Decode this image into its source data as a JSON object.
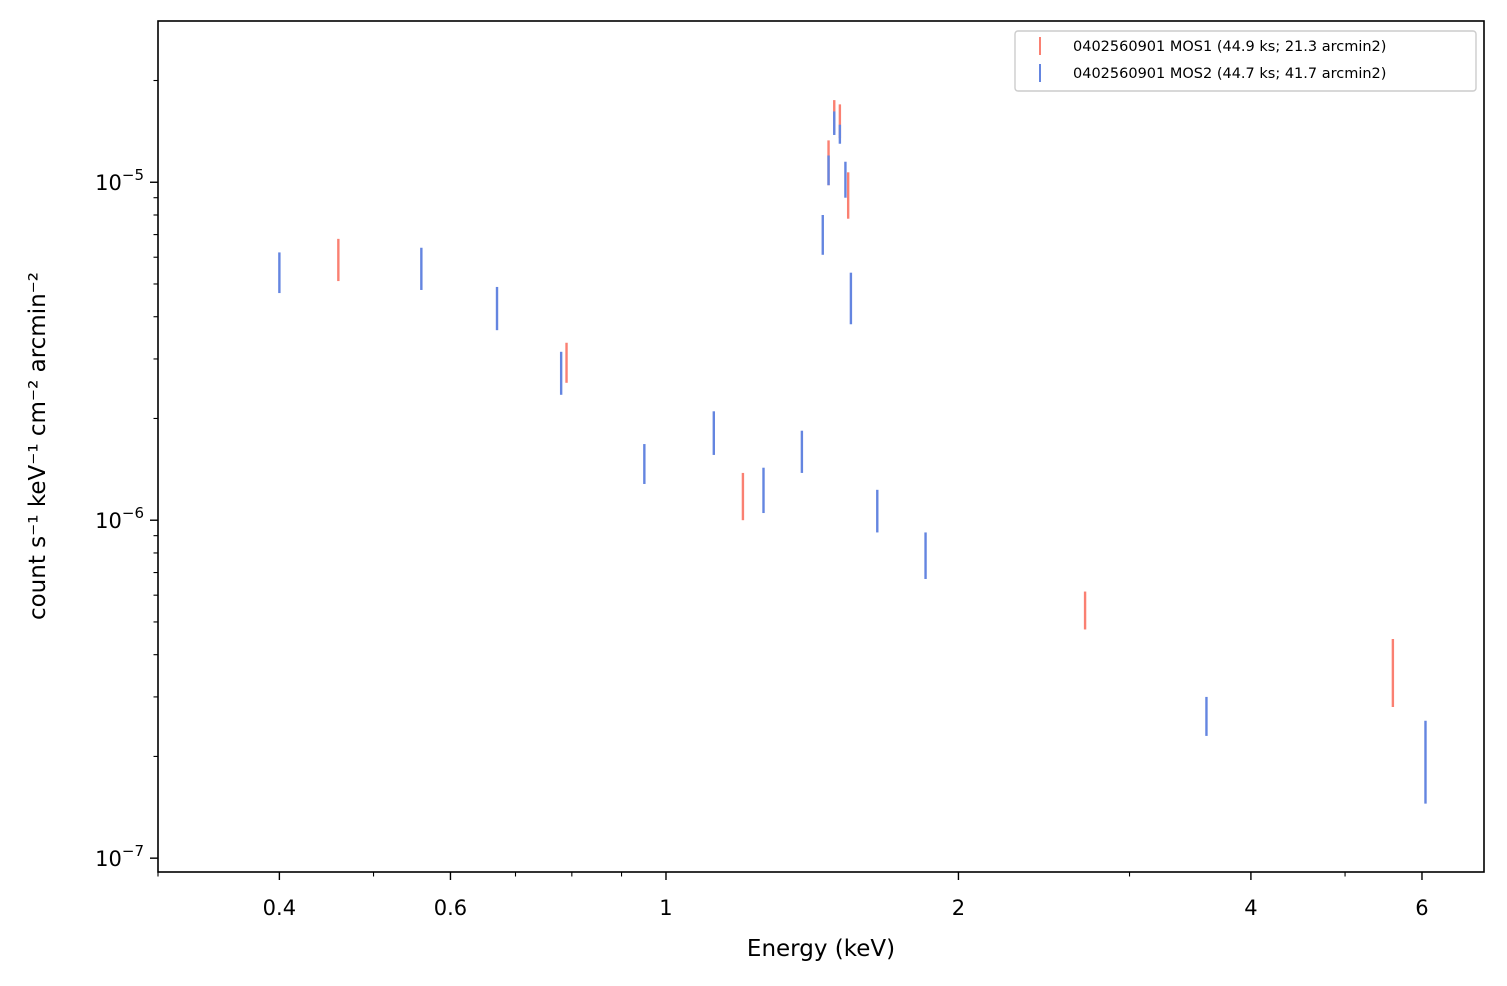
{
  "chart_data": {
    "type": "scatter",
    "title": "",
    "xlabel": "Energy (keV)",
    "ylabel": "count s⁻¹ keV⁻¹ cm⁻² arcmin⁻²",
    "xscale": "log",
    "yscale": "log",
    "xlim": [
      0.3,
      6.95
    ],
    "ylim": [
      9.1e-08,
      3e-05
    ],
    "x_ticks": [
      {
        "value": 0.4,
        "label": "0.4"
      },
      {
        "value": 0.6,
        "label": "0.6"
      },
      {
        "value": 1,
        "label": "1"
      },
      {
        "value": 2,
        "label": "2"
      },
      {
        "value": 4,
        "label": "4"
      },
      {
        "value": 6,
        "label": "6"
      }
    ],
    "y_ticks": [
      {
        "value": 1e-07,
        "base": "10",
        "exp": "−7"
      },
      {
        "value": 1e-06,
        "base": "10",
        "exp": "−6"
      },
      {
        "value": 1e-05,
        "base": "10",
        "exp": "−5"
      }
    ],
    "grid": false,
    "legend_position": "top-right",
    "series": [
      {
        "name": "0402560901 MOS1 (44.9 ks; 21.3 arcmin2)",
        "color": "#fa8072",
        "points": [
          {
            "x": 0.46,
            "ylo": 5.1e-06,
            "yhi": 6.8e-06
          },
          {
            "x": 0.79,
            "ylo": 2.55e-06,
            "yhi": 3.35e-06
          },
          {
            "x": 1.2,
            "ylo": 1e-06,
            "yhi": 1.38e-06
          },
          {
            "x": 1.47,
            "ylo": 9.8e-06,
            "yhi": 1.33e-05
          },
          {
            "x": 1.49,
            "ylo": 1.4e-05,
            "yhi": 1.75e-05
          },
          {
            "x": 1.51,
            "ylo": 1.35e-05,
            "yhi": 1.7e-05
          },
          {
            "x": 1.54,
            "ylo": 7.8e-06,
            "yhi": 1.07e-05
          },
          {
            "x": 2.7,
            "ylo": 4.75e-07,
            "yhi": 6.15e-07
          },
          {
            "x": 5.6,
            "ylo": 2.8e-07,
            "yhi": 4.45e-07
          }
        ]
      },
      {
        "name": "0402560901 MOS2 (44.7 ks; 41.7 arcmin2)",
        "color": "#6485e0",
        "points": [
          {
            "x": 0.4,
            "ylo": 4.7e-06,
            "yhi": 6.2e-06
          },
          {
            "x": 0.56,
            "ylo": 4.8e-06,
            "yhi": 6.4e-06
          },
          {
            "x": 0.67,
            "ylo": 3.65e-06,
            "yhi": 4.9e-06
          },
          {
            "x": 0.78,
            "ylo": 2.35e-06,
            "yhi": 3.15e-06
          },
          {
            "x": 0.95,
            "ylo": 1.28e-06,
            "yhi": 1.68e-06
          },
          {
            "x": 1.12,
            "ylo": 1.56e-06,
            "yhi": 2.1e-06
          },
          {
            "x": 1.26,
            "ylo": 1.05e-06,
            "yhi": 1.43e-06
          },
          {
            "x": 1.38,
            "ylo": 1.38e-06,
            "yhi": 1.84e-06
          },
          {
            "x": 1.45,
            "ylo": 6.1e-06,
            "yhi": 8e-06
          },
          {
            "x": 1.47,
            "ylo": 9.8e-06,
            "yhi": 1.2e-05
          },
          {
            "x": 1.49,
            "ylo": 1.38e-05,
            "yhi": 1.62e-05
          },
          {
            "x": 1.51,
            "ylo": 1.3e-05,
            "yhi": 1.48e-05
          },
          {
            "x": 1.53,
            "ylo": 9e-06,
            "yhi": 1.15e-05
          },
          {
            "x": 1.55,
            "ylo": 3.8e-06,
            "yhi": 5.4e-06
          },
          {
            "x": 1.65,
            "ylo": 9.2e-07,
            "yhi": 1.23e-06
          },
          {
            "x": 1.85,
            "ylo": 6.7e-07,
            "yhi": 9.2e-07
          },
          {
            "x": 3.6,
            "ylo": 2.3e-07,
            "yhi": 3e-07
          },
          {
            "x": 6.05,
            "ylo": 1.45e-07,
            "yhi": 2.55e-07
          }
        ]
      }
    ]
  }
}
